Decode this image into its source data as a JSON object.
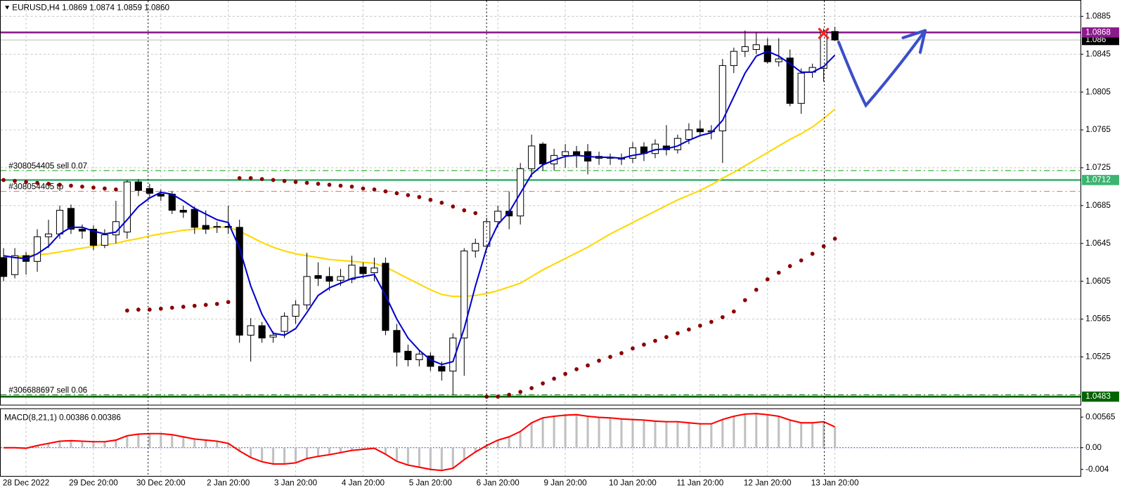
{
  "chart_data": [
    {
      "type": "candlestick",
      "title": "EURUSD,H4 1.0869 1.0874 1.0859 1.0860",
      "categories": [
        null,
        null,
        "28 Dec 2022",
        null,
        null,
        null,
        null,
        null,
        "29 Dec 20:00",
        null,
        null,
        null,
        null,
        null,
        "30 Dec 20:00",
        null,
        null,
        null,
        null,
        null,
        "2 Jan 20:00",
        null,
        null,
        null,
        null,
        null,
        "3 Jan 20:00",
        null,
        null,
        null,
        null,
        null,
        "4 Jan 20:00",
        null,
        null,
        null,
        null,
        null,
        "5 Jan 20:00",
        null,
        null,
        null,
        null,
        null,
        "6 Jan 20:00",
        null,
        null,
        null,
        null,
        null,
        "9 Jan 20:00",
        null,
        null,
        null,
        null,
        null,
        "10 Jan 20:00",
        null,
        null,
        null,
        null,
        null,
        "11 Jan 20:00",
        null,
        null,
        null,
        null,
        null,
        "12 Jan 20:00",
        null,
        null,
        null,
        null,
        null,
        "13 Jan 20:00"
      ],
      "candles": [
        [
          1.063,
          1.064,
          1.0605,
          1.061
        ],
        [
          1.0612,
          1.064,
          1.0608,
          1.0632
        ],
        [
          1.0632,
          1.0636,
          1.0612,
          1.0626
        ],
        [
          1.0626,
          1.066,
          1.0615,
          1.0652
        ],
        [
          1.0652,
          1.067,
          1.064,
          1.0655
        ],
        [
          1.0655,
          1.0685,
          1.065,
          1.068
        ],
        [
          1.0682,
          1.0686,
          1.0655,
          1.066
        ],
        [
          1.066,
          1.0665,
          1.065,
          1.0658
        ],
        [
          1.066,
          1.0664,
          1.0638,
          1.0643
        ],
        [
          1.0643,
          1.066,
          1.064,
          1.0654
        ],
        [
          1.0654,
          1.069,
          1.0645,
          1.0668
        ],
        [
          1.0657,
          1.0712,
          1.065,
          1.071
        ],
        [
          1.071,
          1.0713,
          1.0695,
          1.0701
        ],
        [
          1.0703,
          1.0708,
          1.0694,
          1.0698
        ],
        [
          1.0697,
          1.0702,
          1.069,
          1.0695
        ],
        [
          1.0697,
          1.07,
          1.0676,
          1.068
        ],
        [
          1.068,
          1.0685,
          1.0672,
          1.0678
        ],
        [
          1.0681,
          1.0684,
          1.0655,
          1.0662
        ],
        [
          1.0664,
          1.068,
          1.0655,
          1.066
        ],
        [
          1.0662,
          1.0668,
          1.0656,
          1.0663
        ],
        [
          1.0663,
          1.0685,
          1.0655,
          1.0662
        ],
        [
          1.0662,
          1.067,
          1.054,
          1.0548
        ],
        [
          1.0548,
          1.0566,
          1.052,
          1.0558
        ],
        [
          1.0558,
          1.0562,
          1.054,
          1.0545
        ],
        [
          1.0546,
          1.0552,
          1.054,
          1.0548
        ],
        [
          1.0552,
          1.0572,
          1.0545,
          1.0568
        ],
        [
          1.0568,
          1.0585,
          1.056,
          1.058
        ],
        [
          1.058,
          1.0635,
          1.0575,
          1.061
        ],
        [
          1.0611,
          1.0625,
          1.06,
          1.0608
        ],
        [
          1.061,
          1.062,
          1.0595,
          1.0605
        ],
        [
          1.0606,
          1.0618,
          1.06,
          1.061
        ],
        [
          1.0607,
          1.0632,
          1.0603,
          1.0622
        ],
        [
          1.062,
          1.0625,
          1.0608,
          1.0613
        ],
        [
          1.0614,
          1.063,
          1.0605,
          1.0619
        ],
        [
          1.0624,
          1.063,
          1.0548,
          1.0553
        ],
        [
          1.0553,
          1.056,
          1.0515,
          1.053
        ],
        [
          1.0531,
          1.0538,
          1.0515,
          1.0522
        ],
        [
          1.0522,
          1.0532,
          1.0515,
          1.0528
        ],
        [
          1.0526,
          1.053,
          1.051,
          1.0515
        ],
        [
          1.0515,
          1.052,
          1.05,
          1.051
        ],
        [
          1.051,
          1.055,
          1.0485,
          1.0545
        ],
        [
          1.0545,
          1.064,
          1.0505,
          1.0637
        ],
        [
          1.0637,
          1.065,
          1.063,
          1.0645
        ],
        [
          1.0642,
          1.0672,
          1.0638,
          1.0668
        ],
        [
          1.0668,
          1.0685,
          1.0662,
          1.0679
        ],
        [
          1.0679,
          1.07,
          1.066,
          1.0674
        ],
        [
          1.0674,
          1.073,
          1.0665,
          1.0724
        ],
        [
          1.0724,
          1.076,
          1.0715,
          1.0748
        ],
        [
          1.075,
          1.0752,
          1.0722,
          1.0729
        ],
        [
          1.0729,
          1.0745,
          1.0722,
          1.0738
        ],
        [
          1.0738,
          1.075,
          1.0725,
          1.0742
        ],
        [
          1.0742,
          1.0748,
          1.0725,
          1.0738
        ],
        [
          1.0742,
          1.075,
          1.0718,
          1.0732
        ],
        [
          1.0735,
          1.0742,
          1.0728,
          1.0737
        ],
        [
          1.0735,
          1.074,
          1.0728,
          1.0736
        ],
        [
          1.0734,
          1.074,
          1.0728,
          1.0735
        ],
        [
          1.0735,
          1.0752,
          1.073,
          1.0746
        ],
        [
          1.0747,
          1.0752,
          1.0732,
          1.074
        ],
        [
          1.074,
          1.0755,
          1.0735,
          1.075
        ],
        [
          1.0748,
          1.077,
          1.0738,
          1.0744
        ],
        [
          1.0744,
          1.076,
          1.074,
          1.0756
        ],
        [
          1.0755,
          1.0772,
          1.075,
          1.0765
        ],
        [
          1.0766,
          1.0775,
          1.0758,
          1.0763
        ],
        [
          1.0763,
          1.077,
          1.0755,
          1.0764
        ],
        [
          1.0764,
          1.084,
          1.073,
          1.0833
        ],
        [
          1.0833,
          1.0852,
          1.0825,
          1.0848
        ],
        [
          1.0848,
          1.087,
          1.0842,
          1.0853
        ],
        [
          1.085,
          1.0868,
          1.0845,
          1.0855
        ],
        [
          1.0854,
          1.0862,
          1.0835,
          1.0837
        ],
        [
          1.0837,
          1.0862,
          1.0832,
          1.084
        ],
        [
          1.0841,
          1.085,
          1.079,
          1.0793
        ],
        [
          1.0793,
          1.083,
          1.0782,
          1.0825
        ],
        [
          1.0826,
          1.0835,
          1.082,
          1.0831
        ],
        [
          1.083,
          1.0872,
          1.0816,
          1.0868
        ],
        [
          1.0869,
          1.0874,
          1.0859,
          1.086
        ]
      ],
      "ylim": [
        1.0476,
        1.09
      ],
      "yticks": [
        1.0885,
        1.0845,
        1.0805,
        1.0765,
        1.0725,
        1.0685,
        1.0645,
        1.0605,
        1.0565,
        1.0525
      ],
      "grid": true,
      "ma_fast": {
        "color": "#0000cd",
        "values": [
          1.0632,
          1.063,
          1.0629,
          1.0634,
          1.0642,
          1.0655,
          1.0662,
          1.0662,
          1.0658,
          1.0655,
          1.0657,
          1.067,
          1.0684,
          1.0693,
          1.0699,
          1.0697,
          1.069,
          1.0682,
          1.0676,
          1.067,
          1.0667,
          1.064,
          1.06,
          1.057,
          1.055,
          1.0548,
          1.0555,
          1.0572,
          1.059,
          1.0598,
          1.0603,
          1.0608,
          1.061,
          1.0612,
          1.059,
          1.0565,
          1.0545,
          1.0532,
          1.0522,
          1.0517,
          1.052,
          1.0555,
          1.06,
          1.064,
          1.0665,
          1.0678,
          1.0698,
          1.0718,
          1.0728,
          1.0733,
          1.0737,
          1.0738,
          1.0737,
          1.0736,
          1.0736,
          1.0735,
          1.0738,
          1.074,
          1.0744,
          1.0745,
          1.0748,
          1.0754,
          1.0759,
          1.0762,
          1.0775,
          1.08,
          1.0825,
          1.0843,
          1.0848,
          1.0843,
          1.0835,
          1.0826,
          1.0826,
          1.0832,
          1.0844
        ]
      },
      "ma_slow": {
        "color": "#ffd700",
        "values": [
          1.063,
          1.0631,
          1.0632,
          1.0633,
          1.0634,
          1.0636,
          1.0638,
          1.064,
          1.0642,
          1.0644,
          1.0645,
          1.0648,
          1.065,
          1.0653,
          1.0655,
          1.0657,
          1.0659,
          1.066,
          1.0661,
          1.0662,
          1.0662,
          1.0658,
          1.0652,
          1.0646,
          1.0641,
          1.0637,
          1.0634,
          1.0632,
          1.063,
          1.0628,
          1.0627,
          1.0626,
          1.0625,
          1.0624,
          1.062,
          1.0614,
          1.0608,
          1.0602,
          1.0596,
          1.0591,
          1.0589,
          1.0589,
          1.059,
          1.0592,
          1.0595,
          1.0599,
          1.0603,
          1.061,
          1.0617,
          1.0623,
          1.0629,
          1.0635,
          1.0641,
          1.0648,
          1.0655,
          1.0661,
          1.0667,
          1.0673,
          1.0679,
          1.0685,
          1.0691,
          1.0696,
          1.0701,
          1.0707,
          1.0714,
          1.072,
          1.0727,
          1.0734,
          1.0741,
          1.0748,
          1.0755,
          1.0761,
          1.0768,
          1.0777,
          1.0787
        ]
      },
      "sar": {
        "color": "#8b0000",
        "values": [
          1.0712,
          1.0711,
          1.071,
          1.0709,
          1.0708,
          1.0707,
          1.0706,
          1.0705,
          1.0704,
          1.0703,
          1.0702,
          1.0574,
          1.0575,
          1.0575,
          1.0576,
          1.0577,
          1.0578,
          1.0579,
          1.058,
          1.0581,
          1.0583,
          1.0714,
          1.0714,
          1.0713,
          1.0712,
          1.0711,
          1.071,
          1.0709,
          1.0708,
          1.0707,
          1.0706,
          1.0705,
          1.0703,
          1.0702,
          1.07,
          1.0698,
          1.0696,
          1.0694,
          1.0691,
          1.0688,
          1.0684,
          1.068,
          1.0677,
          1.0483,
          1.0483,
          1.0485,
          1.0488,
          1.0492,
          1.0497,
          1.0502,
          1.0507,
          1.0512,
          1.0516,
          1.0521,
          1.0525,
          1.0529,
          1.0534,
          1.0538,
          1.0542,
          1.0546,
          1.055,
          1.0554,
          1.0558,
          1.0562,
          1.0567,
          1.0573,
          1.0585,
          1.0596,
          1.0607,
          1.0614,
          1.0621,
          1.0627,
          1.0634,
          1.0642,
          1.065
        ]
      },
      "levels": [
        {
          "value": 1.086,
          "color": "#000000"
        },
        {
          "value": 1.0868,
          "color": "#8b1a8b"
        },
        {
          "value": 1.0712,
          "color": "#3cb371"
        },
        {
          "value": 1.0483,
          "color": "#006400"
        }
      ],
      "orders": [
        {
          "text": "#308054405 sell 0.07",
          "price": 1.0722,
          "color": "#00a000"
        },
        {
          "text": "#308054405 tp",
          "price": 1.07,
          "color": "#ff6347"
        },
        {
          "text": "#306688697 sell 0.06",
          "price": 1.0485,
          "color": "#006400"
        }
      ]
    },
    {
      "type": "macd",
      "title": "MACD(8,21,1) 0.00386 0.00386",
      "values": [
        0.0,
        0.0,
        -0.0001,
        0.0004,
        0.0008,
        0.0012,
        0.0013,
        0.0012,
        0.0011,
        0.0011,
        0.0014,
        0.0022,
        0.0025,
        0.0026,
        0.0026,
        0.0024,
        0.002,
        0.0016,
        0.0014,
        0.0012,
        0.0008,
        -0.0006,
        -0.0018,
        -0.0026,
        -0.003,
        -0.003,
        -0.0028,
        -0.002,
        -0.0016,
        -0.0013,
        -0.0009,
        -0.0005,
        -0.0003,
        -0.0001,
        -0.0012,
        -0.0025,
        -0.0032,
        -0.0036,
        -0.004,
        -0.0042,
        -0.0038,
        -0.0022,
        -0.0008,
        0.0004,
        0.0014,
        0.002,
        0.003,
        0.0046,
        0.0055,
        0.0058,
        0.006,
        0.0061,
        0.0058,
        0.0056,
        0.0055,
        0.0053,
        0.0052,
        0.0051,
        0.0049,
        0.0048,
        0.0048,
        0.0046,
        0.0044,
        0.0044,
        0.0052,
        0.0058,
        0.0062,
        0.0063,
        0.0061,
        0.0058,
        0.0051,
        0.0046,
        0.0046,
        0.0048,
        0.00386
      ],
      "bar_color": "#c0c0c0",
      "line_color": "#ff0000",
      "ylim": [
        -0.00521,
        0.00686
      ],
      "yticks": [
        0.00565,
        {
          "value": 0,
          "label": "0.00"
        },
        -0.004
      ]
    }
  ]
}
